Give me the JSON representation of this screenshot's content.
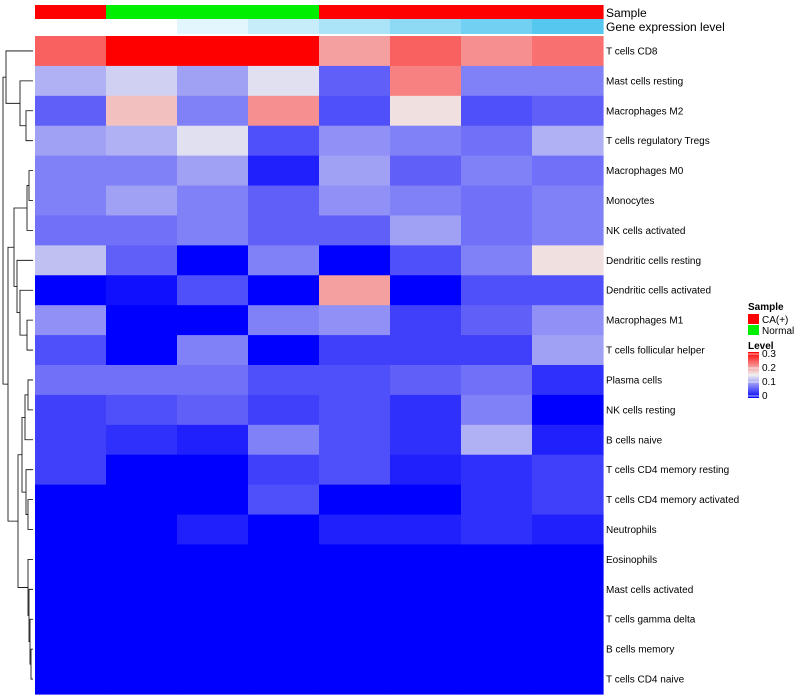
{
  "chart_data": {
    "type": "heatmap",
    "annotation_labels": {
      "sample": "Sample",
      "gene_expression": "Gene expression level"
    },
    "rows": [
      "T cells CD8",
      "Mast cells resting",
      "Macrophages M2",
      "T cells regulatory  Tregs",
      "Macrophages M0",
      "Monocytes",
      "NK cells activated",
      "Dendritic cells resting",
      "Dendritic cells activated",
      "Macrophages M1",
      "T cells follicular helper",
      "Plasma cells",
      "NK cells resting",
      "B cells naive",
      "T cells CD4 memory resting",
      "T cells CD4 memory activated",
      "Neutrophils",
      "Eosinophils",
      "Mast cells activated",
      "T cells gamma delta",
      "B cells memory",
      "T cells CD4 naive"
    ],
    "columns": [
      {
        "sample": "CA(+)",
        "expression_level": 0.0
      },
      {
        "sample": "Normal",
        "expression_level": 0.0
      },
      {
        "sample": "Normal",
        "expression_level": 0.05
      },
      {
        "sample": "Normal",
        "expression_level": 0.1
      },
      {
        "sample": "CA(+)",
        "expression_level": 0.15
      },
      {
        "sample": "CA(+)",
        "expression_level": 0.2
      },
      {
        "sample": "CA(+)",
        "expression_level": 0.25
      },
      {
        "sample": "CA(+)",
        "expression_level": 0.3
      }
    ],
    "values": [
      [
        0.24,
        0.3,
        0.3,
        0.3,
        0.2,
        0.24,
        0.21,
        0.23
      ],
      [
        0.11,
        0.13,
        0.1,
        0.14,
        0.06,
        0.22,
        0.08,
        0.08
      ],
      [
        0.06,
        0.18,
        0.08,
        0.21,
        0.05,
        0.16,
        0.05,
        0.06
      ],
      [
        0.1,
        0.11,
        0.14,
        0.05,
        0.09,
        0.08,
        0.07,
        0.11
      ],
      [
        0.08,
        0.08,
        0.1,
        0.02,
        0.1,
        0.06,
        0.08,
        0.07
      ],
      [
        0.08,
        0.1,
        0.08,
        0.06,
        0.09,
        0.08,
        0.07,
        0.08
      ],
      [
        0.07,
        0.07,
        0.08,
        0.06,
        0.06,
        0.1,
        0.07,
        0.08
      ],
      [
        0.12,
        0.06,
        0.0,
        0.08,
        0.0,
        0.05,
        0.08,
        0.16
      ],
      [
        0.0,
        0.01,
        0.05,
        0.0,
        0.2,
        0.0,
        0.05,
        0.05
      ],
      [
        0.09,
        0.0,
        0.0,
        0.08,
        0.09,
        0.04,
        0.06,
        0.09
      ],
      [
        0.05,
        0.0,
        0.08,
        0.0,
        0.04,
        0.04,
        0.04,
        0.1
      ],
      [
        0.07,
        0.07,
        0.07,
        0.05,
        0.05,
        0.06,
        0.07,
        0.03
      ],
      [
        0.04,
        0.05,
        0.06,
        0.04,
        0.05,
        0.03,
        0.08,
        0.0
      ],
      [
        0.04,
        0.03,
        0.02,
        0.08,
        0.05,
        0.03,
        0.11,
        0.02
      ],
      [
        0.04,
        0.0,
        0.0,
        0.04,
        0.05,
        0.02,
        0.03,
        0.04
      ],
      [
        0.0,
        0.0,
        0.0,
        0.05,
        0.0,
        0.0,
        0.03,
        0.04
      ],
      [
        0.0,
        0.0,
        0.02,
        0.0,
        0.02,
        0.02,
        0.03,
        0.02
      ],
      [
        0.0,
        0.0,
        0.0,
        0.0,
        0.0,
        0.0,
        0.0,
        0.0
      ],
      [
        0.0,
        0.0,
        0.0,
        0.0,
        0.0,
        0.0,
        0.0,
        0.0
      ],
      [
        0.0,
        0.0,
        0.0,
        0.0,
        0.0,
        0.0,
        0.0,
        0.0
      ],
      [
        0.0,
        0.0,
        0.0,
        0.0,
        0.0,
        0.0,
        0.0,
        0.0
      ],
      [
        0.0,
        0.0,
        0.0,
        0.0,
        0.0,
        0.0,
        0.0,
        0.0
      ]
    ],
    "color_scale": {
      "min": 0,
      "mid": 0.15,
      "max": 0.3,
      "low": "#0000ff",
      "midColor": "#f0f0f0",
      "high": "#ff0000"
    },
    "sample_colors": {
      "CA(+)": "#ff0000",
      "Normal": "#00ee00"
    },
    "expression_colors": {
      "low": "#ffffff",
      "high": "#56c8f0"
    },
    "legend": {
      "sample_title": "Sample",
      "sample_entries": [
        "CA(+)",
        "Normal"
      ],
      "level_title": "Level",
      "level_ticks": [
        "0.3",
        "0.2",
        "0.1",
        "0"
      ]
    }
  }
}
